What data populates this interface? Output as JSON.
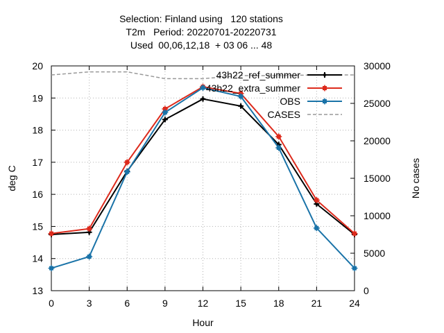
{
  "chart_data": {
    "type": "line",
    "title_lines": [
      "Selection: Finland using   120 stations",
      "T2m   Period: 20220701-20220731",
      "Used  00,06,12,18  + 03 06 ... 48"
    ],
    "xlabel": "Hour",
    "ylabel": "deg C",
    "y2label": "No cases",
    "x": [
      0,
      3,
      6,
      9,
      12,
      15,
      18,
      21,
      24
    ],
    "xlim": [
      0,
      24
    ],
    "ylim": [
      13,
      20
    ],
    "y2lim": [
      0,
      30000
    ],
    "xticks": [
      "0",
      "3",
      "6",
      "9",
      "12",
      "15",
      "18",
      "21",
      "24"
    ],
    "yticks": [
      "13",
      "14",
      "15",
      "16",
      "17",
      "18",
      "19",
      "20"
    ],
    "y2ticks": [
      "0",
      "5000",
      "10000",
      "15000",
      "20000",
      "25000",
      "30000"
    ],
    "grid": true,
    "legend_position": "top-right",
    "series": [
      {
        "name": "43h22_ref_summer",
        "color": "#000000",
        "axis": "y",
        "marker": "cross",
        "values": [
          14.75,
          14.82,
          16.72,
          18.33,
          18.97,
          18.75,
          17.55,
          15.7,
          14.75
        ]
      },
      {
        "name": "43h22_extra_summer",
        "color": "#dd2a1c",
        "axis": "y",
        "marker": "square",
        "values": [
          14.78,
          14.93,
          17.0,
          18.66,
          19.35,
          19.14,
          17.8,
          15.82,
          14.78
        ]
      },
      {
        "name": "OBS",
        "color": "#1a73a8",
        "axis": "y",
        "marker": "square",
        "values": [
          13.7,
          14.06,
          16.7,
          18.55,
          19.32,
          19.05,
          17.45,
          14.95,
          13.7
        ]
      },
      {
        "name": "CASES",
        "color": "#999999",
        "axis": "y2",
        "dashed": true,
        "values": [
          28800,
          29200,
          29200,
          28300,
          28300,
          28700,
          28700,
          28800,
          28800
        ]
      }
    ]
  }
}
